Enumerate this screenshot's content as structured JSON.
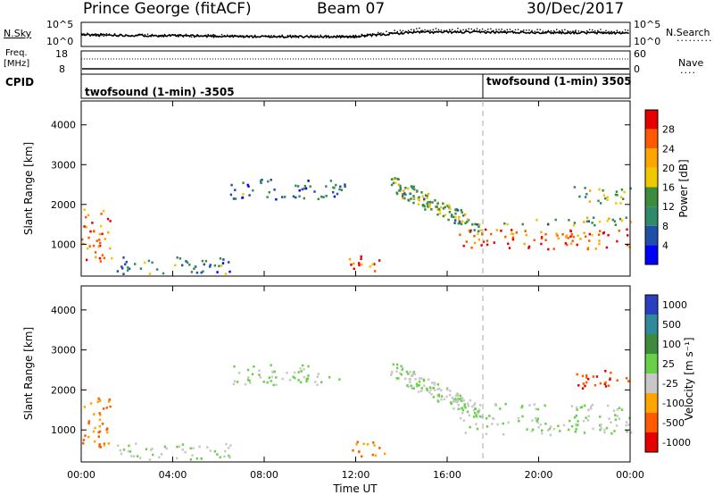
{
  "header": {
    "station": "Prince George (fitACF)",
    "beam": "Beam 07",
    "date": "30/Dec/2017"
  },
  "panels": {
    "nsky": {
      "left_label": "N.Sky",
      "left_ticks": [
        "10^5",
        "10^0"
      ],
      "right_ticks": [
        "10^5",
        "10^0"
      ],
      "right_label": "N.Search"
    },
    "freq": {
      "left_label_top": "Freq.",
      "left_label_unit": "[MHz]",
      "left_ticks": [
        "18",
        "8"
      ],
      "right_ticks": [
        "60",
        "0"
      ],
      "right_label": "Nave"
    },
    "cpid": {
      "left_label": "CPID",
      "programs": [
        "twofsound (1-min) -3505",
        "twofsound (1-min) 3505"
      ]
    },
    "power": {
      "ylabel": "Slant Range [km]",
      "cbar_label": "Power [dB]",
      "cbar_ticks": [
        "28",
        "24",
        "20",
        "16",
        "12",
        "8",
        "4"
      ],
      "cbar_colors": [
        "#e60000",
        "#ff5a00",
        "#ffa500",
        "#f0c800",
        "#3c8c3c",
        "#2f8a6a",
        "#1f4fa8",
        "#0000ff"
      ]
    },
    "velocity": {
      "ylabel": "Slant Range [km]",
      "cbar_label": "Velocity [m s⁻¹]",
      "cbar_ticks": [
        "1000",
        "500",
        "100",
        "25",
        "-25",
        "-100",
        "-500",
        "-1000"
      ],
      "cbar_colors": [
        "#2a3fbf",
        "#2f8a9a",
        "#3c8c3c",
        "#6ad04a",
        "#c8c8c8",
        "#ffa500",
        "#ff5a00",
        "#e60000"
      ]
    }
  },
  "chart_data": {
    "type": "heatmap",
    "xlabel": "Time UT",
    "x_ticks": [
      "00:00",
      "04:00",
      "08:00",
      "12:00",
      "16:00",
      "20:00",
      "00:00"
    ],
    "xlim_hours": [
      0,
      24
    ],
    "ylim_km": [
      200,
      4600
    ],
    "y_ticks_km": [
      1000,
      2000,
      3000,
      4000
    ],
    "cpid_change_hour": 18,
    "nsky_nsearch_level": [
      {
        "t": 0,
        "nsky": 0.55,
        "nsearch": 0.6
      },
      {
        "t": 4,
        "nsky": 0.5,
        "nsearch": 0.55
      },
      {
        "t": 8,
        "nsky": 0.45,
        "nsearch": 0.5
      },
      {
        "t": 12,
        "nsky": 0.45,
        "nsearch": 0.5
      },
      {
        "t": 14.5,
        "nsky": 0.7,
        "nsearch": 0.9
      },
      {
        "t": 18,
        "nsky": 0.7,
        "nsearch": 0.85
      },
      {
        "t": 24,
        "nsky": 0.65,
        "nsearch": 0.8
      }
    ],
    "scatter_regions": [
      {
        "name": "near_range_early",
        "t0": 0,
        "t1": 1.3,
        "r0": 600,
        "r1": 1900,
        "power": 24,
        "velocity": -100
      },
      {
        "name": "arc_morning",
        "t0": 1.5,
        "t1": 6.5,
        "r0": 280,
        "r1": 700,
        "power": 10,
        "velocity": 25
      },
      {
        "name": "high_band",
        "t0": 6.5,
        "t1": 11.5,
        "r0": 2150,
        "r1": 2650,
        "power": 9,
        "velocity": 25
      },
      {
        "name": "noon_echo",
        "t0": 11.7,
        "t1": 13.3,
        "r0": 350,
        "r1": 750,
        "power": 26,
        "velocity": -100
      },
      {
        "name": "descending_band",
        "t0": 13.5,
        "t1": 17.5,
        "r0": 1200,
        "r1": 2700,
        "power": 14,
        "velocity": 25
      },
      {
        "name": "evening_main",
        "t0": 16.5,
        "t1": 24,
        "r0": 900,
        "r1": 1400,
        "power": 26,
        "velocity": 25
      },
      {
        "name": "evening_upper",
        "t0": 18,
        "t1": 24,
        "r0": 1500,
        "r1": 1700,
        "power": 15,
        "velocity": 25
      },
      {
        "name": "late_high",
        "t0": 21.5,
        "t1": 24,
        "r0": 2050,
        "r1": 2500,
        "power": 16,
        "velocity": -500
      }
    ]
  }
}
